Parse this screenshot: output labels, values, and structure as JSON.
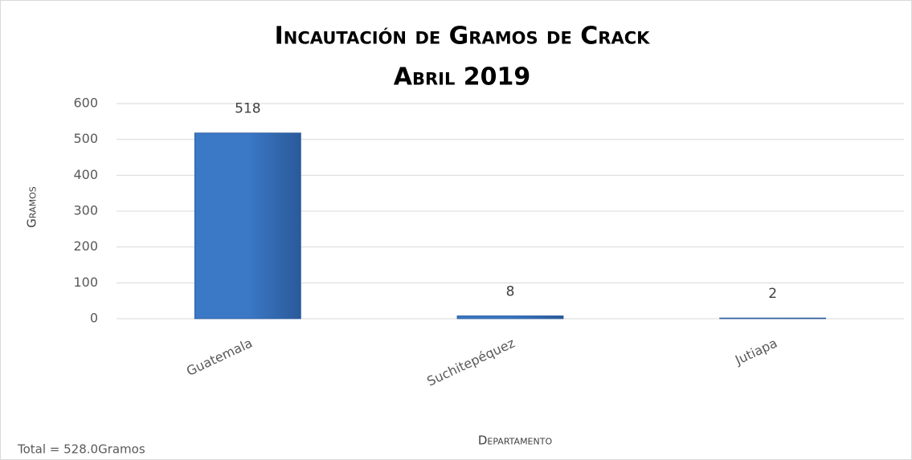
{
  "chart_data": {
    "type": "bar",
    "title": "Incautación de Gramos de Crack",
    "subtitle": "Abril 2019",
    "y_label": "Gramos",
    "x_label": "Departamento",
    "annotation": "Total = 528.0Gramos",
    "categories": [
      "Guatemala",
      "Suchitepéquez",
      "Jutiapa"
    ],
    "values": [
      518,
      8,
      2
    ],
    "color": "#3b78c6",
    "ylim": [
      0,
      600
    ],
    "yticks": [
      0,
      100,
      200,
      300,
      400,
      500,
      600
    ],
    "grid": true
  }
}
